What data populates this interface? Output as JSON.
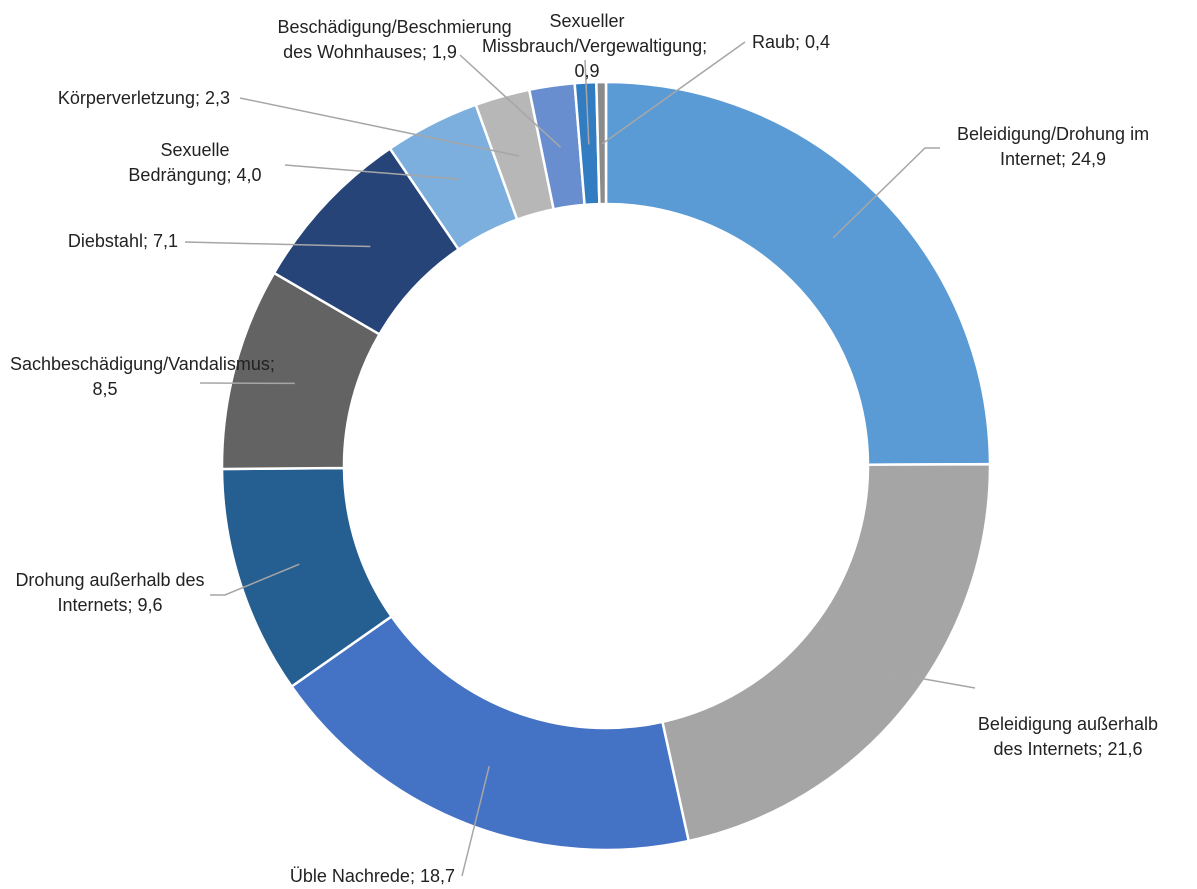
{
  "chart_data": {
    "type": "donut",
    "categories": [
      "Beleidigung/Drohung im Internet",
      "Beleidigung außerhalb des Internets",
      "Üble Nachrede",
      "Drohung außerhalb des Internets",
      "Sachbeschädigung/Vandalismus",
      "Diebstahl",
      "Sexuelle Bedrängung",
      "Körperverletzung",
      "Beschädigung/Beschmierung des Wohnhauses",
      "Sexueller Missbrauch/Vergewaltigung",
      "Raub"
    ],
    "values": [
      24.9,
      21.6,
      18.7,
      9.6,
      8.5,
      7.1,
      4.0,
      2.3,
      1.9,
      0.9,
      0.4
    ],
    "value_labels": [
      "24,9",
      "21,6",
      "18,7",
      "9,6",
      "8,5",
      "7,1",
      "4,0",
      "2,3",
      "1,9",
      "0,9",
      "0,4"
    ],
    "label_separator": "; ",
    "colors": [
      "#5b9bd5",
      "#a5a5a5",
      "#4472c4",
      "#255e91",
      "#636363",
      "#264478",
      "#7cafdd",
      "#b7b7b7",
      "#698ed0",
      "#327dc2",
      "#8b8b8b"
    ]
  }
}
